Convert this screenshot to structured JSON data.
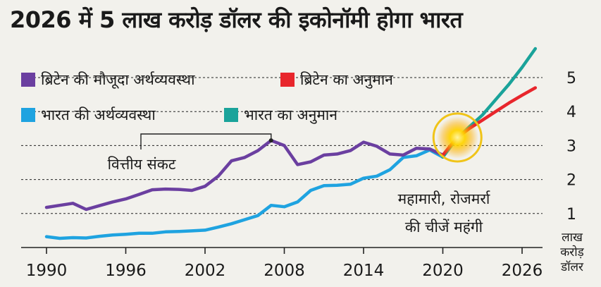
{
  "chart_data": {
    "type": "line",
    "title": "2026 में 5 लाख करोड़ डॉलर की इकोनॉमी होगा भारत",
    "ylabel": "लाख करोड़ डॉलर",
    "ylabel_lines": [
      "लाख",
      "करोड़",
      "डॉलर"
    ],
    "xlabel": "",
    "xlim": [
      1989,
      2028
    ],
    "ylim": [
      0,
      5.8
    ],
    "x_ticks": [
      1990,
      1996,
      2002,
      2008,
      2014,
      2020,
      2026
    ],
    "y_ticks": [
      1,
      2,
      3,
      4,
      5
    ],
    "grid": true,
    "series": [
      {
        "name": "ब्रिटेन की मौजूदा अर्थव्यवस्था",
        "color": "#6b3fa0",
        "x": [
          1990,
          1991,
          1992,
          1993,
          1994,
          1995,
          1996,
          1997,
          1998,
          1999,
          2000,
          2001,
          2002,
          2003,
          2004,
          2005,
          2006,
          2007,
          2008,
          2009,
          2010,
          2011,
          2012,
          2013,
          2014,
          2015,
          2016,
          2017,
          2018,
          2019,
          2020
        ],
        "values": [
          1.18,
          1.24,
          1.3,
          1.12,
          1.23,
          1.34,
          1.43,
          1.56,
          1.7,
          1.72,
          1.71,
          1.68,
          1.8,
          2.1,
          2.55,
          2.65,
          2.85,
          3.15,
          3.0,
          2.44,
          2.52,
          2.72,
          2.75,
          2.85,
          3.1,
          2.98,
          2.75,
          2.72,
          2.92,
          2.9,
          2.72
        ]
      },
      {
        "name": "ब्रिटेन का अनुमान",
        "color": "#e8262c",
        "x": [
          2020,
          2021,
          2022,
          2023,
          2024,
          2025,
          2026,
          2027
        ],
        "values": [
          2.72,
          3.2,
          3.5,
          3.75,
          4.0,
          4.25,
          4.48,
          4.7
        ]
      },
      {
        "name": "भारत की अर्थव्यवस्था",
        "color": "#1fa3e0",
        "x": [
          1990,
          1991,
          1992,
          1993,
          1994,
          1995,
          1996,
          1997,
          1998,
          1999,
          2000,
          2001,
          2002,
          2003,
          2004,
          2005,
          2006,
          2007,
          2008,
          2009,
          2010,
          2011,
          2012,
          2013,
          2014,
          2015,
          2016,
          2017,
          2018,
          2019,
          2020
        ],
        "values": [
          0.32,
          0.27,
          0.29,
          0.28,
          0.33,
          0.37,
          0.39,
          0.42,
          0.42,
          0.46,
          0.47,
          0.49,
          0.51,
          0.6,
          0.7,
          0.82,
          0.94,
          1.24,
          1.2,
          1.34,
          1.68,
          1.82,
          1.83,
          1.86,
          2.04,
          2.1,
          2.29,
          2.65,
          2.7,
          2.87,
          2.66
        ]
      },
      {
        "name": "भारत का अनुमान",
        "color": "#1aa39a",
        "x": [
          2020,
          2021,
          2022,
          2023,
          2024,
          2025,
          2026,
          2027
        ],
        "values": [
          2.66,
          3.18,
          3.55,
          3.9,
          4.35,
          4.8,
          5.3,
          5.85
        ]
      }
    ],
    "annotations": [
      {
        "text": "वित्तीय संकट",
        "target_x": 2007,
        "target_y": 3.15
      },
      {
        "text_lines": [
          "महामारी, रोजमर्रा",
          "की चीजें महंगी"
        ],
        "target_x": 2021,
        "target_y": 3.3
      }
    ]
  },
  "legend": {
    "items": [
      {
        "label": "ब्रिटेन की मौजूदा अर्थव्यवस्था",
        "color": "#6b3fa0"
      },
      {
        "label": "ब्रिटेन का अनुमान",
        "color": "#e8262c"
      },
      {
        "label": "भारत की अर्थव्यवस्था",
        "color": "#1fa3e0"
      },
      {
        "label": "भारत का अनुमान",
        "color": "#1aa39a"
      }
    ]
  },
  "colors": {
    "background": "#f2f1ec",
    "grid": "#222222",
    "text": "#1a1a1a",
    "highlight_ring": "#f0c419",
    "highlight_glow": "#ffd400"
  }
}
